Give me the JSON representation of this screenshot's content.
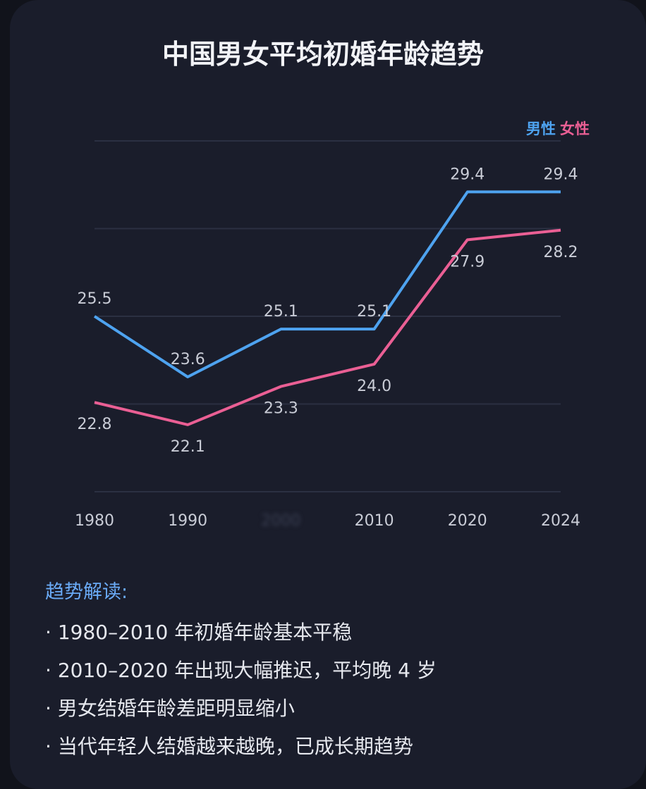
{
  "chart_data": {
    "type": "line",
    "title": "中国男女平均初婚年龄趋势",
    "categories": [
      "1980",
      "1990",
      "2000",
      "2010",
      "2020",
      "2024"
    ],
    "series": [
      {
        "name": "男性",
        "color": "#4ea3f0",
        "values": [
          25.5,
          23.6,
          25.1,
          25.1,
          29.4,
          29.4
        ]
      },
      {
        "name": "女性",
        "color": "#ea5f94",
        "values": [
          22.8,
          22.1,
          23.3,
          24.0,
          27.9,
          28.2
        ]
      }
    ],
    "ylim": [
      20,
      31
    ],
    "grid": true,
    "legend": "top-right",
    "obscured_categories": [
      "2000"
    ]
  },
  "notes": {
    "heading": "趋势解读:",
    "items": [
      "1980–2010 年初婚年龄基本平稳",
      "2010–2020 年出现大幅推迟，平均晚 4 岁",
      "男女结婚年龄差距明显缩小",
      "当代年轻人结婚越来越晚，已成长期趋势"
    ]
  }
}
